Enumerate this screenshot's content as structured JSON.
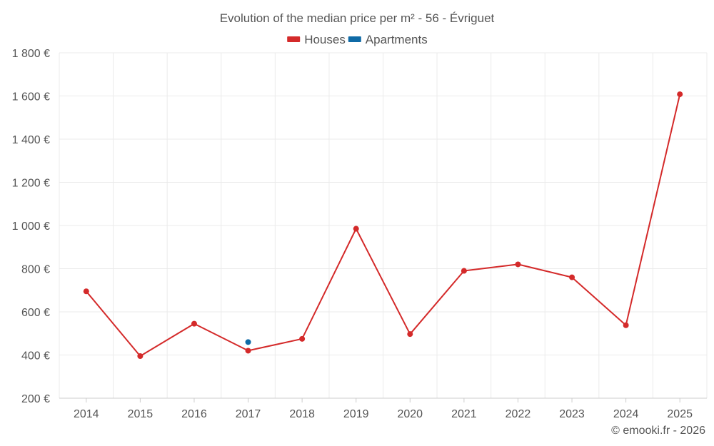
{
  "chart_data": {
    "type": "line",
    "title": "Evolution of the median price per m² - 56 - Évriguet",
    "xlabel": "",
    "ylabel": "",
    "categories": [
      "2014",
      "2015",
      "2016",
      "2017",
      "2018",
      "2019",
      "2020",
      "2021",
      "2022",
      "2023",
      "2024",
      "2025"
    ],
    "ylim": [
      200,
      1800
    ],
    "yticks": [
      200,
      400,
      600,
      800,
      1000,
      1200,
      1400,
      1600,
      1800
    ],
    "ytick_labels": [
      "200 €",
      "400 €",
      "600 €",
      "800 €",
      "1 000 €",
      "1 200 €",
      "1 400 €",
      "1 600 €",
      "1 800 €"
    ],
    "grid": true,
    "legend_position": "top-center",
    "series": [
      {
        "name": "Houses",
        "color": "#d42a2a",
        "values": [
          695,
          395,
          545,
          420,
          475,
          985,
          497,
          790,
          820,
          760,
          538,
          1608
        ]
      },
      {
        "name": "Apartments",
        "color": "#0f6aa6",
        "values": [
          null,
          null,
          null,
          460,
          null,
          null,
          null,
          null,
          null,
          null,
          null,
          null
        ]
      }
    ]
  },
  "footer": {
    "credit": "© emooki.fr - 2026"
  }
}
